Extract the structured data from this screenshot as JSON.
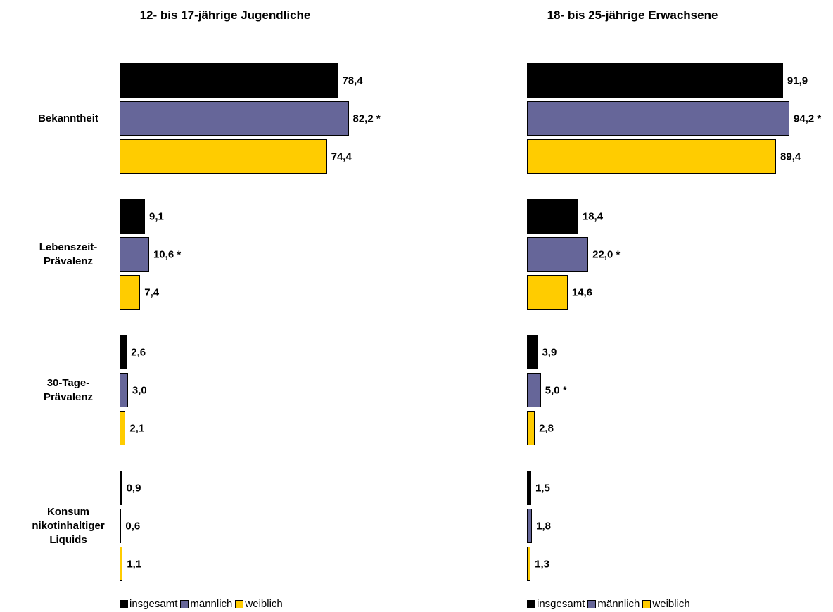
{
  "chart_data": [
    {
      "type": "bar",
      "orientation": "horizontal",
      "title": "12- bis 17-jährige Jugendliche",
      "categories": [
        "Bekanntheit",
        "Lebenszeit-\nPrävalenz",
        "30-Tage-\nPrävalenz",
        "Konsum\nnikotinhaltiger\nLiquids"
      ],
      "xlim": [
        0,
        100
      ],
      "series": [
        {
          "name": "insgesamt",
          "color": "#000000",
          "values": [
            78.4,
            9.1,
            2.6,
            0.9
          ],
          "value_labels": [
            "78,4",
            "9,1",
            "2,6",
            "0,9"
          ]
        },
        {
          "name": "männlich",
          "color": "#666699",
          "values": [
            82.2,
            10.6,
            3.0,
            0.6
          ],
          "value_labels": [
            "82,2 *",
            "10,6 *",
            "3,0",
            "0,6"
          ]
        },
        {
          "name": "weiblich",
          "color": "#ffcc00",
          "values": [
            74.4,
            7.4,
            2.1,
            1.1
          ],
          "value_labels": [
            "74,4",
            "7,4",
            "2,1",
            "1,1"
          ]
        }
      ]
    },
    {
      "type": "bar",
      "orientation": "horizontal",
      "title": "18- bis 25-jährige Erwachsene",
      "categories": [
        null,
        null,
        null,
        null
      ],
      "xlim": [
        0,
        100
      ],
      "series": [
        {
          "name": "insgesamt",
          "color": "#000000",
          "values": [
            91.9,
            18.4,
            3.9,
            1.5
          ],
          "value_labels": [
            "91,9",
            "18,4",
            "3,9",
            "1,5"
          ]
        },
        {
          "name": "männlich",
          "color": "#666699",
          "values": [
            94.2,
            22.0,
            5.0,
            1.8
          ],
          "value_labels": [
            "94,2 *",
            "22,0 *",
            "5,0 *",
            "1,8"
          ]
        },
        {
          "name": "weiblich",
          "color": "#ffcc00",
          "values": [
            89.4,
            14.6,
            2.8,
            1.3
          ],
          "value_labels": [
            "89,4",
            "14,6",
            "2,8",
            "1,3"
          ]
        }
      ]
    }
  ]
}
